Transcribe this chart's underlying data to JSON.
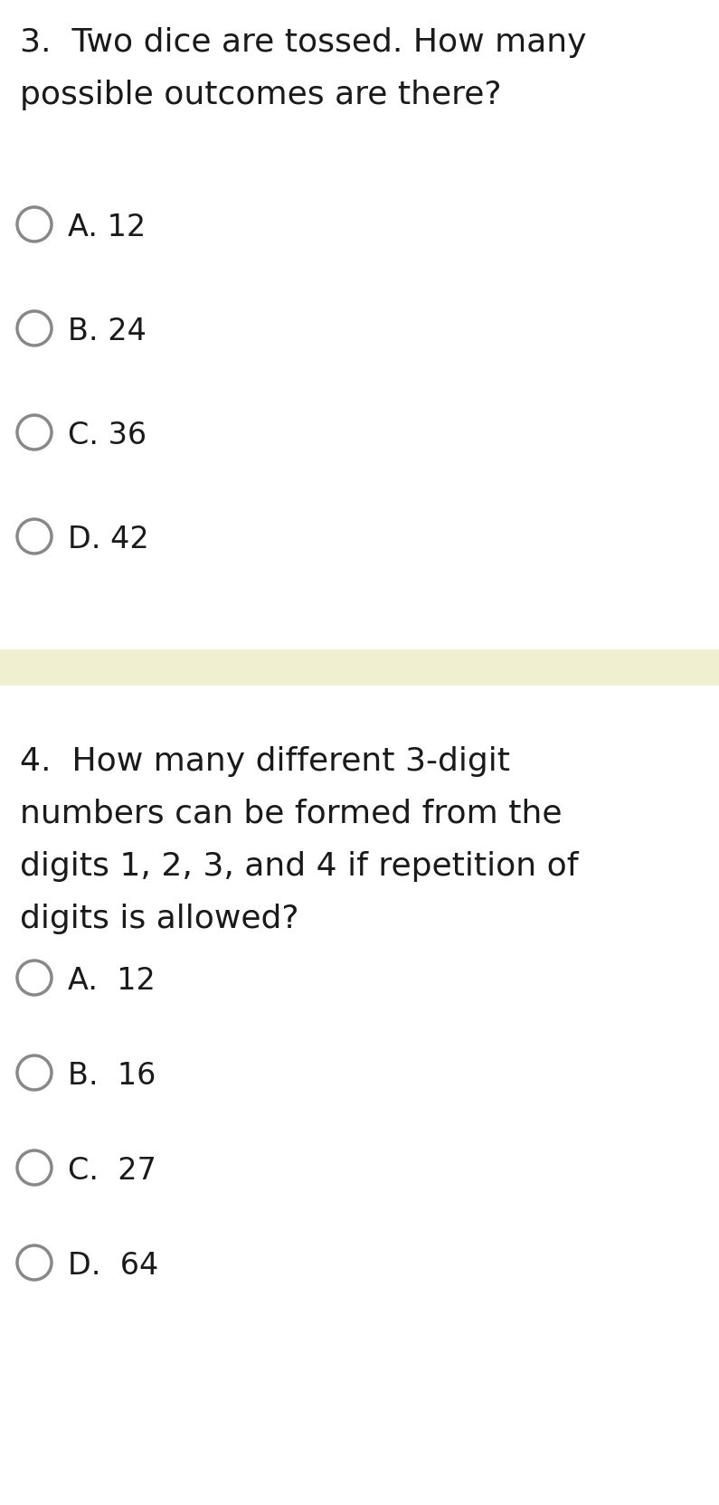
{
  "background_color": "#ffffff",
  "divider_color": "#f0f0d0",
  "text_color": "#1a1a1a",
  "circle_edge_color": "#888888",
  "q1_number": "3.",
  "q1_text_line1": "Two dice are tossed. How many",
  "q1_text_line2": "possible outcomes are there?",
  "q1_options": [
    "A. 12",
    "B. 24",
    "C. 36",
    "D. 42"
  ],
  "q2_number": "4.",
  "q2_text_line1": "How many different 3-digit",
  "q2_text_line2": "numbers can be formed from the",
  "q2_text_line3": "digits 1, 2, 3, and 4 if repetition of",
  "q2_text_line4": "digits is allowed?",
  "q2_options": [
    "A.  12",
    "B.  16",
    "C.  27",
    "D.  64"
  ],
  "font_size_question": 26,
  "font_size_option": 24,
  "font_family": "DejaVu Sans"
}
